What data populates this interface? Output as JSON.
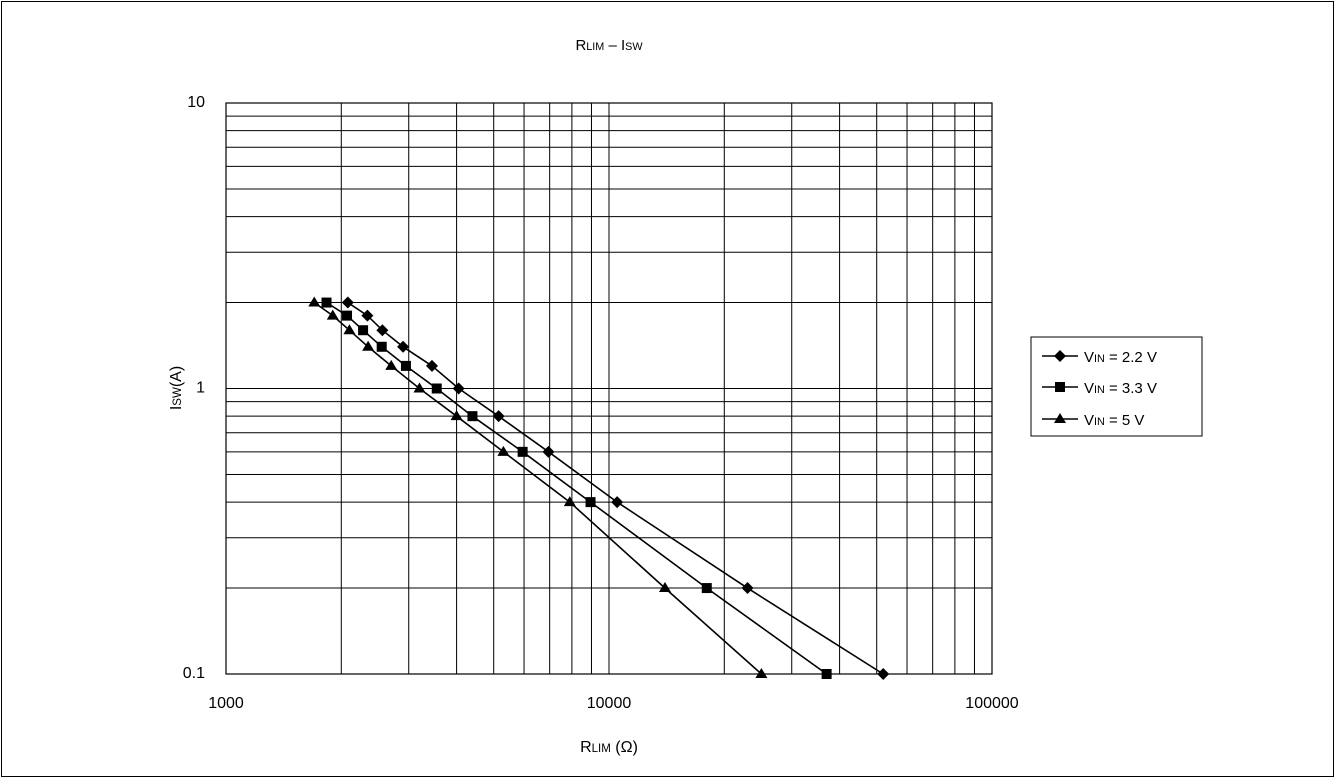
{
  "chart_data": {
    "type": "line",
    "title": {
      "main": "R",
      "main_sub": "LIM",
      "sep": " – ",
      "tail": "I",
      "tail_sub": "SW"
    },
    "xlabel": {
      "main": "R",
      "sub": "LIM",
      "tail": " (Ω)"
    },
    "ylabel": {
      "main": "I",
      "sub": "SW",
      "tail": "(A)"
    },
    "x_scale": "log",
    "y_scale": "log",
    "xlim": [
      1000,
      100000
    ],
    "ylim": [
      0.1,
      10
    ],
    "x_ticks": [
      1000,
      10000,
      100000
    ],
    "x_tick_labels": [
      "1000",
      "10000",
      "100000"
    ],
    "y_ticks": [
      0.1,
      1,
      10
    ],
    "y_tick_labels": [
      "0.1",
      "1",
      "10"
    ],
    "grid": true,
    "legend_position": "right",
    "series": [
      {
        "name": {
          "main": "V",
          "sub": "IN",
          "tail": " = 2.2 V"
        },
        "marker": "diamond",
        "x": [
          2080,
          2340,
          2560,
          2900,
          3450,
          4050,
          5150,
          6950,
          10500,
          23000,
          52000
        ],
        "y": [
          2.0,
          1.8,
          1.6,
          1.4,
          1.2,
          1.0,
          0.8,
          0.6,
          0.4,
          0.2,
          0.1
        ]
      },
      {
        "name": {
          "main": "V",
          "sub": "IN",
          "tail": " = 3.3 V"
        },
        "marker": "square",
        "x": [
          1830,
          2070,
          2280,
          2550,
          2950,
          3550,
          4400,
          5950,
          8950,
          18000,
          37000
        ],
        "y": [
          2.0,
          1.8,
          1.6,
          1.4,
          1.2,
          1.0,
          0.8,
          0.6,
          0.4,
          0.2,
          0.1
        ]
      },
      {
        "name": {
          "main": "V",
          "sub": "IN",
          "tail": " = 5 V"
        },
        "marker": "triangle",
        "x": [
          1700,
          1900,
          2100,
          2350,
          2700,
          3200,
          4000,
          5300,
          7900,
          14000,
          25000
        ],
        "y": [
          2.0,
          1.8,
          1.6,
          1.4,
          1.2,
          1.0,
          0.8,
          0.6,
          0.4,
          0.2,
          0.1
        ]
      }
    ]
  }
}
